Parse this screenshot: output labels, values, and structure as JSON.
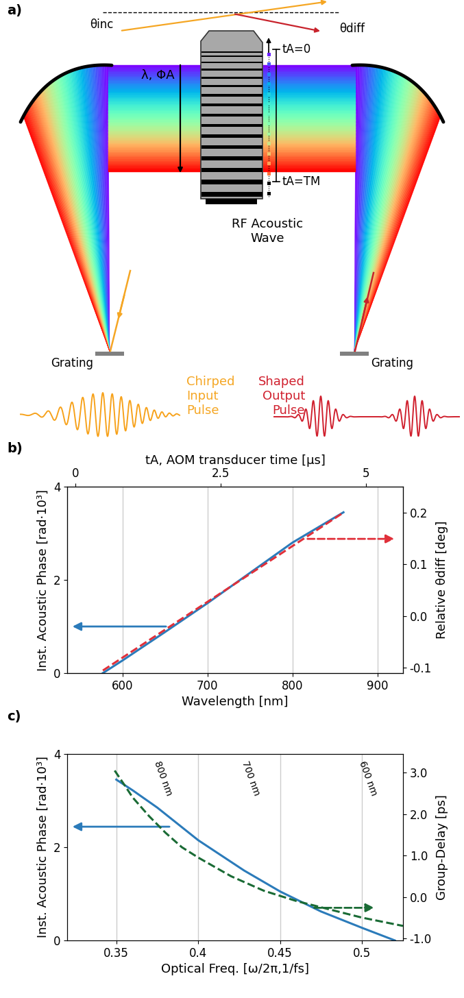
{
  "diagram": {
    "panel_label": "a)",
    "theta_inc": "θinc",
    "theta_diff": "θdiff",
    "wavelength_phase": "λ, ΦA",
    "t_start": "tA=0",
    "t_end": "tA=TM",
    "acoustic_wave": "RF Acoustic\nWave",
    "grating_left": "Grating",
    "grating_right": "Grating",
    "input_pulse": "Chirped\nInput\nPulse",
    "output_pulse": "Shaped\nOutput\nPulse"
  },
  "chart_data": [
    {
      "panel_label": "b)",
      "type": "line",
      "x_label": "Wavelength [nm]",
      "x2_label": "tA, AOM transducer time [μs]",
      "y_label": "Inst. Acoustic Phase [rad·10³]",
      "y2_label": "Relative θdiff [deg]",
      "xlim": [
        535,
        930
      ],
      "xticks": [
        600,
        700,
        800,
        900
      ],
      "x2lim": [
        -0.14,
        5.63
      ],
      "x2ticks": [
        0,
        2.5,
        5
      ],
      "ylim": [
        0,
        4
      ],
      "yticks": [
        0,
        2,
        4
      ],
      "y2lim": [
        -0.11,
        0.25
      ],
      "y2ticks": [
        {
          "value": -0.1,
          "label": "-0.1"
        },
        {
          "value": 0,
          "label": "0.0"
        },
        {
          "value": 0.1,
          "label": "0.1"
        },
        {
          "value": 0.2,
          "label": "0.2"
        }
      ],
      "grid": "x",
      "series": [
        {
          "color": "#2b7bba",
          "line_style": "solid",
          "axis": "y",
          "x": [
            577,
            600,
            650,
            700,
            750,
            800,
            860
          ],
          "values": [
            0,
            0.27,
            0.88,
            1.5,
            2.15,
            2.8,
            3.45
          ]
        },
        {
          "color": "#e0303a",
          "line_style": "dashed",
          "axis": "y2",
          "x": [
            577,
            860
          ],
          "values": [
            -0.105,
            0.2
          ]
        }
      ]
    },
    {
      "panel_label": "c)",
      "type": "line",
      "x_label": "Optical Freq. [ω/2π,1/fs]",
      "y_label": "Inst. Acoustic Phase [rad·10³]",
      "y2_label": "Group-Delay [ps]",
      "xlim": [
        0.32,
        0.525
      ],
      "xticks": [
        {
          "value": 0.35,
          "label": "0.35"
        },
        {
          "value": 0.4,
          "label": "0.4"
        },
        {
          "value": 0.45,
          "label": "0.45"
        },
        {
          "value": 0.5,
          "label": "0.5"
        }
      ],
      "ylim": [
        0,
        4
      ],
      "yticks": [
        0,
        2,
        4
      ],
      "y2lim": [
        -1.05,
        3.45
      ],
      "y2ticks": [
        {
          "value": -1,
          "label": "-1.0"
        },
        {
          "value": 0,
          "label": "0.0"
        },
        {
          "value": 1,
          "label": "1.0"
        },
        {
          "value": 2,
          "label": "2.0"
        },
        {
          "value": 3,
          "label": "3.0"
        }
      ],
      "grid": "x",
      "annotations": [
        {
          "text": "800 nm",
          "x": 0.3747
        },
        {
          "text": "700 nm",
          "x": 0.4283
        },
        {
          "text": "600 nm",
          "x": 0.4997
        }
      ],
      "series": [
        {
          "color": "#2b7bba",
          "line_style": "solid",
          "axis": "y",
          "x": [
            0.35,
            0.36,
            0.375,
            0.4,
            0.428,
            0.45,
            0.475,
            0.5,
            0.52
          ],
          "values": [
            3.45,
            3.22,
            2.85,
            2.15,
            1.5,
            1.05,
            0.62,
            0.27,
            0.0
          ]
        },
        {
          "color": "#1a6b35",
          "line_style": "dashed",
          "axis": "y2",
          "x": [
            0.349,
            0.355,
            0.36,
            0.37,
            0.38,
            0.39,
            0.4,
            0.42,
            0.44,
            0.46,
            0.48,
            0.5,
            0.525
          ],
          "values": [
            3.05,
            2.7,
            2.4,
            1.95,
            1.55,
            1.2,
            0.95,
            0.5,
            0.15,
            -0.1,
            -0.3,
            -0.5,
            -0.7
          ]
        }
      ]
    }
  ]
}
